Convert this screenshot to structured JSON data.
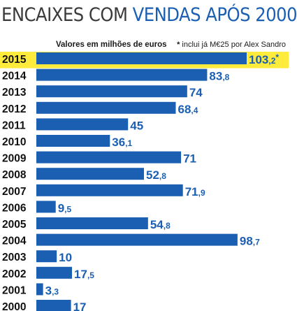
{
  "title": {
    "part1": "ENCAIXES COM",
    "part2": "VENDAS APÓS 2000"
  },
  "subtitle": "Valores em milhões de euros",
  "footnote": {
    "marker": "*",
    "text": "inclui já M€25 por Alex Sandro"
  },
  "colors": {
    "bar": "#1b5fb3",
    "highlight": "#ffeb3b",
    "value_text": "#1b5fb3"
  },
  "chart_data": {
    "type": "bar",
    "orientation": "horizontal",
    "title": "ENCAIXES COM VENDAS APÓS 2000",
    "subtitle": "Valores em milhões de euros",
    "unit": "milhões de euros",
    "categories": [
      "2015",
      "2014",
      "2013",
      "2012",
      "2011",
      "2010",
      "2009",
      "2008",
      "2007",
      "2006",
      "2005",
      "2004",
      "2003",
      "2002",
      "2001",
      "2000"
    ],
    "values": [
      103.2,
      83.8,
      74,
      68.4,
      45,
      36.1,
      71,
      52.8,
      71.9,
      9.5,
      54.8,
      98.7,
      10,
      17.5,
      3.3,
      17
    ],
    "value_labels": [
      "103,2*",
      "83,8",
      "74",
      "68,4",
      "45",
      "36,1",
      "71",
      "52,8",
      "71,9",
      "9,5",
      "54,8",
      "98,7",
      "10",
      "17,5",
      "3,3",
      "17"
    ],
    "highlighted_category": "2015",
    "xlim": [
      0,
      103.2
    ],
    "grid": false,
    "legend": "none"
  }
}
